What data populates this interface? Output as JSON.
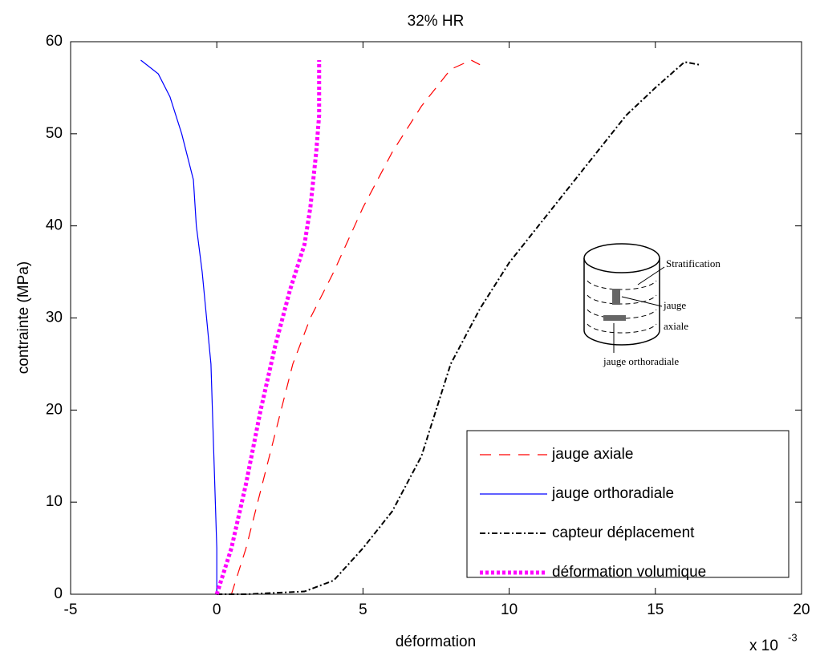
{
  "chart_data": {
    "type": "line",
    "title": "32% HR",
    "xlabel": "déformation",
    "ylabel": "contrainte (MPa)",
    "x_exponent_base": "x 10",
    "x_exponent": "-3",
    "xlim": [
      -5,
      20
    ],
    "xticks": [
      -5,
      0,
      5,
      10,
      15,
      20
    ],
    "ylim": [
      0,
      60
    ],
    "yticks": [
      0,
      10,
      20,
      30,
      40,
      50,
      60
    ],
    "grid": false,
    "legend": "lower right",
    "series": [
      {
        "name": "jauge axiale",
        "color": "#ff0000",
        "linestyle": "--",
        "linewidth": 1.2,
        "x": [
          0.5,
          1,
          1.8,
          2.6,
          3.2,
          4,
          5,
          6,
          7,
          8,
          8.7,
          9
        ],
        "values": [
          0,
          5,
          15,
          25,
          30,
          35,
          42,
          48,
          53,
          57,
          58,
          57.5
        ]
      },
      {
        "name": "jauge orthoradiale",
        "color": "#0000ff",
        "linestyle": "-",
        "linewidth": 1.2,
        "x": [
          0,
          0,
          -0.1,
          -0.2,
          -0.5,
          -0.7,
          -0.8,
          -1.2,
          -1.6,
          -2,
          -2.6
        ],
        "values": [
          0,
          5,
          15,
          25,
          35,
          40,
          45,
          50,
          54,
          56.5,
          58
        ]
      },
      {
        "name": "capteur déplacement",
        "color": "#000000",
        "linestyle": "-.",
        "linewidth": 2,
        "x": [
          0,
          1,
          3,
          4,
          5,
          6,
          7,
          8,
          9,
          10,
          11,
          12,
          13,
          14,
          15,
          16,
          16.5
        ],
        "values": [
          0,
          0,
          0.3,
          1.5,
          5,
          9,
          15,
          25,
          31,
          36,
          40,
          44,
          48,
          52,
          55,
          57.8,
          57.5
        ]
      },
      {
        "name": "déformation volumique",
        "color": "#ff00ff",
        "linestyle": ":",
        "linewidth": 5,
        "x": [
          0,
          0.5,
          1,
          1.5,
          2,
          2.5,
          3,
          3.2,
          3.4,
          3.5,
          3.5
        ],
        "values": [
          0,
          5,
          12,
          20,
          27,
          33,
          38,
          42,
          48,
          52,
          58
        ]
      }
    ],
    "annotations": [
      "Stratification",
      "jauge axiale",
      "jauge orthoradiale"
    ]
  }
}
